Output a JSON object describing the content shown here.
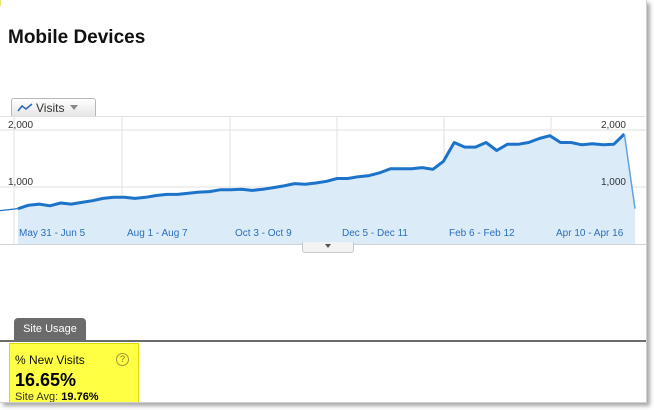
{
  "page": {
    "title": "Mobile Devices"
  },
  "metric_selector": {
    "label": "Visits",
    "icon": "line-chart-icon"
  },
  "chart_data": {
    "type": "area",
    "title": "",
    "xlabel": "",
    "ylabel": "",
    "y_tick_labels_left": [
      "2,000",
      "1,000"
    ],
    "y_tick_labels_right": [
      "2,000",
      "1,000"
    ],
    "y_ticks": [
      2000,
      1000
    ],
    "ylim": [
      0,
      2200
    ],
    "grid": true,
    "x_tick_labels": [
      "May 31 - Jun 5",
      "Aug 1 - Aug 7",
      "Oct 3 - Oct 9",
      "Dec 5 - Dec 11",
      "Feb 6 - Feb 12",
      "Apr 10 - Apr 16"
    ],
    "colors": {
      "line": "#1c73c9",
      "fill": "#dcebf8",
      "grid": "#e2e2e2"
    },
    "series": [
      {
        "values": [
          620,
          680,
          700,
          670,
          720,
          700,
          730,
          760,
          800,
          820,
          820,
          800,
          820,
          850,
          870,
          870,
          890,
          910,
          920,
          950,
          950,
          960,
          940,
          960,
          990,
          1020,
          1060,
          1050,
          1070,
          1100,
          1150,
          1150,
          1180,
          1200,
          1250,
          1320,
          1320,
          1320,
          1340,
          1310,
          1450,
          1780,
          1700,
          1700,
          1780,
          1640,
          1750,
          1750,
          1780,
          1850,
          1900,
          1780,
          1780,
          1740,
          1760,
          1740,
          1750,
          1930,
          620
        ]
      }
    ]
  },
  "tab": {
    "label": "Site Usage"
  },
  "scorecard": {
    "name": "% New Visits",
    "value": "16.65%",
    "avg_label": "Site Avg:",
    "avg_value": "19.76%",
    "help": "?"
  }
}
